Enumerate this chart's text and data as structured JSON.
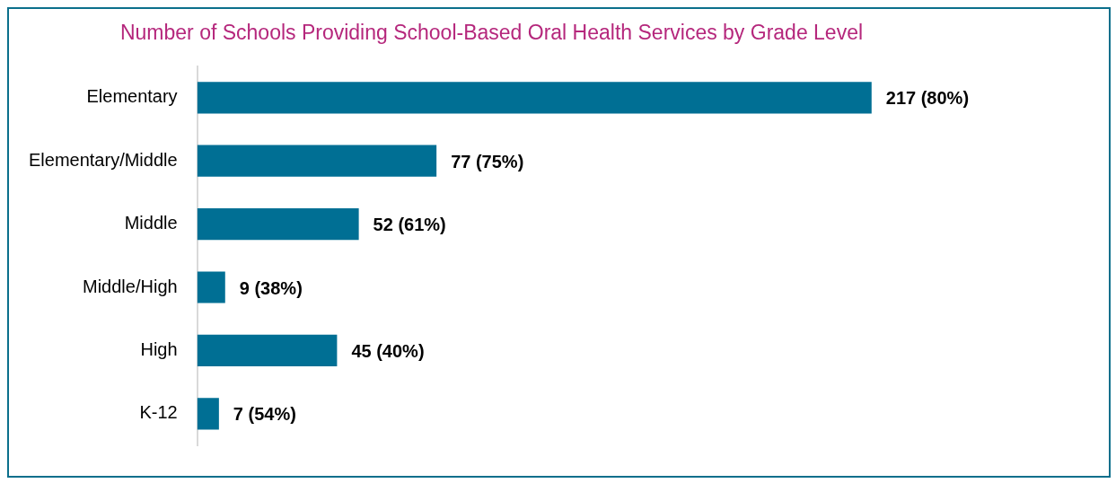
{
  "chart_data": {
    "type": "bar",
    "orientation": "horizontal",
    "title": "Number of Schools Providing School-Based Oral Health Services by Grade Level",
    "categories": [
      "Elementary",
      "Elementary/Middle",
      "Middle",
      "Middle/High",
      "High",
      "K-12"
    ],
    "values": [
      217,
      77,
      52,
      9,
      45,
      7
    ],
    "value_labels": [
      "217 (80%)",
      "77 (75%)",
      "52 (61%)",
      "9 (38%)",
      "45 (40%)",
      "7 (54%)"
    ],
    "color": "#006f94",
    "tick_labels": "y",
    "legend": false
  }
}
